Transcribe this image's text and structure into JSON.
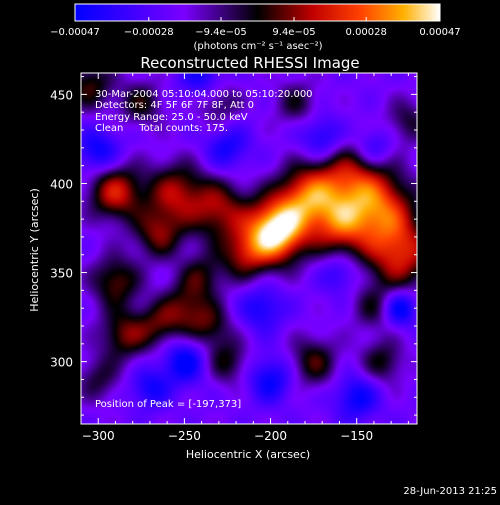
{
  "chart_data": {
    "type": "heatmap",
    "title": "Reconstructed RHESSI Image",
    "xlabel": "Heliocentric X (arcsec)",
    "ylabel": "Heliocentric Y (arcsec)",
    "xlim": [
      -310,
      -115
    ],
    "ylim": [
      265,
      462
    ],
    "x_ticks": [
      -300,
      -250,
      -200,
      -150
    ],
    "y_ticks": [
      300,
      350,
      400,
      450
    ],
    "colorbar": {
      "min": -0.00047,
      "max": 0.00047,
      "tick_values": [
        -0.00047,
        -0.00028,
        -9.4e-05,
        9.4e-05,
        0.00028,
        0.00047
      ],
      "tick_labels": [
        "-0.00047",
        "-0.00028",
        "-9.4e-05",
        "9.4e-05",
        "0.00028",
        "0.00047"
      ],
      "unit_label": "(photons cm⁻² s⁻¹ asec⁻²)",
      "colors": [
        "#0000ff",
        "#7a00ff",
        "#000000",
        "#c00000",
        "#ff4000",
        "#ffb000",
        "#ffffff"
      ]
    },
    "annotations": {
      "time_range": "30-Mar-2004 05:10:04.000 to 05:10:20.000",
      "detectors": "Detectors: 4F 5F 6F 7F 8F, Att 0",
      "energy": "Energy Range: 25.0 - 50.0 keV",
      "method": "Clean     Total counts: 175.",
      "peak": "Position of Peak = [-197,373]"
    },
    "peak": {
      "x": -197,
      "y": 373
    },
    "sources": [
      {
        "x": -197,
        "y": 373,
        "amp": 1.0,
        "s": 12
      },
      {
        "x": -180,
        "y": 392,
        "amp": 0.55,
        "s": 12
      },
      {
        "x": -155,
        "y": 400,
        "amp": 0.55,
        "s": 16
      },
      {
        "x": -135,
        "y": 385,
        "amp": 0.5,
        "s": 14
      },
      {
        "x": -125,
        "y": 360,
        "amp": 0.55,
        "s": 14
      },
      {
        "x": -160,
        "y": 375,
        "amp": 0.45,
        "s": 12
      },
      {
        "x": -230,
        "y": 385,
        "amp": 0.45,
        "s": 12
      },
      {
        "x": -255,
        "y": 395,
        "amp": 0.45,
        "s": 12
      },
      {
        "x": -290,
        "y": 395,
        "amp": 0.55,
        "s": 11
      },
      {
        "x": -265,
        "y": 372,
        "amp": 0.4,
        "s": 10
      },
      {
        "x": -215,
        "y": 360,
        "amp": 0.4,
        "s": 10
      },
      {
        "x": -240,
        "y": 348,
        "amp": 0.3,
        "s": 9
      },
      {
        "x": -290,
        "y": 345,
        "amp": 0.4,
        "s": 10
      },
      {
        "x": -285,
        "y": 315,
        "amp": 0.4,
        "s": 10
      },
      {
        "x": -265,
        "y": 320,
        "amp": 0.3,
        "s": 9
      },
      {
        "x": -250,
        "y": 330,
        "amp": 0.35,
        "s": 10
      },
      {
        "x": -235,
        "y": 320,
        "amp": 0.3,
        "s": 9
      },
      {
        "x": -225,
        "y": 300,
        "amp": 0.3,
        "s": 9
      },
      {
        "x": -175,
        "y": 300,
        "amp": 0.35,
        "s": 10
      },
      {
        "x": -140,
        "y": 330,
        "amp": 0.25,
        "s": 9
      },
      {
        "x": -135,
        "y": 300,
        "amp": 0.3,
        "s": 9
      },
      {
        "x": -300,
        "y": 290,
        "amp": 0.25,
        "s": 9
      },
      {
        "x": -305,
        "y": 455,
        "amp": 0.35,
        "s": 10
      },
      {
        "x": -275,
        "y": 445,
        "amp": 0.3,
        "s": 9
      },
      {
        "x": -230,
        "y": 445,
        "amp": 0.25,
        "s": 9
      },
      {
        "x": -185,
        "y": 445,
        "amp": 0.25,
        "s": 9
      },
      {
        "x": -120,
        "y": 435,
        "amp": 0.25,
        "s": 9
      },
      {
        "x": -300,
        "y": 418,
        "amp": -0.35,
        "s": 9
      },
      {
        "x": -225,
        "y": 420,
        "amp": -0.3,
        "s": 9
      },
      {
        "x": -170,
        "y": 425,
        "amp": -0.35,
        "s": 9
      },
      {
        "x": -140,
        "y": 420,
        "amp": -0.3,
        "s": 8
      },
      {
        "x": -250,
        "y": 300,
        "amp": -0.4,
        "s": 9
      },
      {
        "x": -200,
        "y": 290,
        "amp": -0.35,
        "s": 9
      },
      {
        "x": -150,
        "y": 280,
        "amp": -0.35,
        "s": 9
      },
      {
        "x": -125,
        "y": 330,
        "amp": -0.45,
        "s": 7
      },
      {
        "x": -205,
        "y": 330,
        "amp": -0.3,
        "s": 9
      },
      {
        "x": -270,
        "y": 285,
        "amp": -0.3,
        "s": 8
      },
      {
        "x": -160,
        "y": 350,
        "amp": -0.25,
        "s": 8
      },
      {
        "x": -240,
        "y": 460,
        "amp": -0.3,
        "s": 9
      }
    ],
    "grid": false,
    "legend": "none"
  },
  "footer": {
    "date": "28-Jun-2013 21:25"
  }
}
